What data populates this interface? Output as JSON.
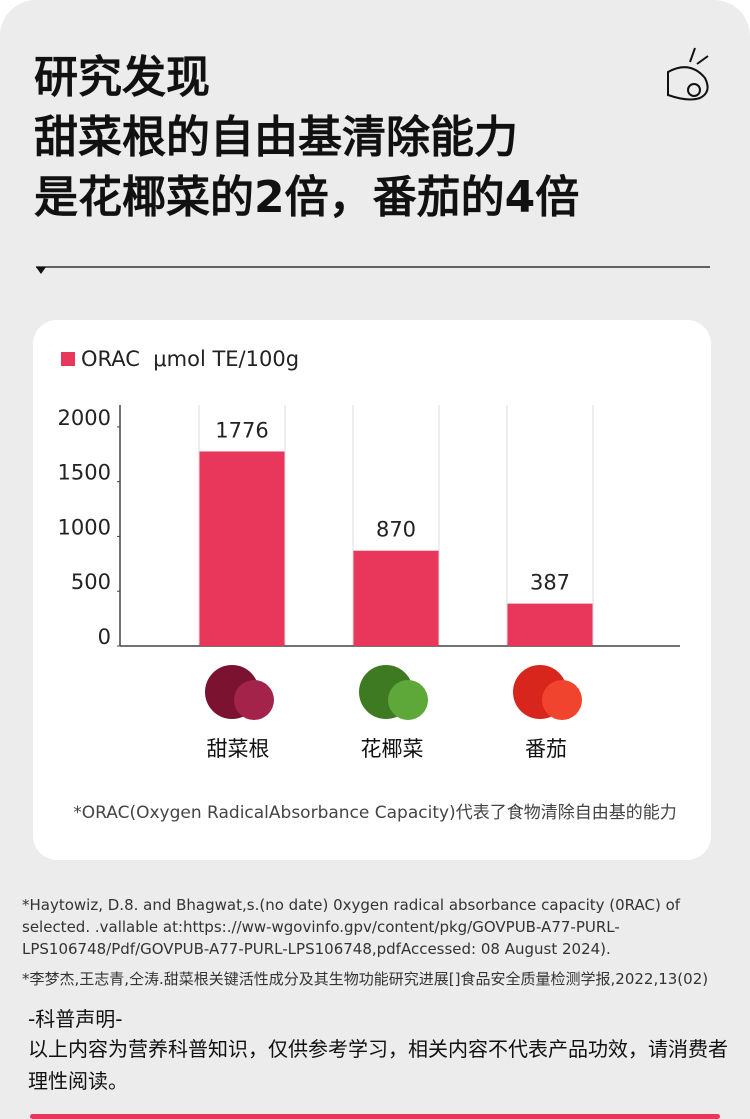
{
  "header": {
    "lines": [
      "研究发现",
      "甜菜根的自由基清除能力",
      "是花椰菜的2倍，番茄的4倍"
    ]
  },
  "chart_data": {
    "type": "bar",
    "categories": [
      "甜菜根",
      "花椰菜",
      "番茄"
    ],
    "series": [
      {
        "name": "ORAC  μmol TE/100g",
        "color": "#e8375a",
        "values": [
          1776,
          870,
          387
        ]
      }
    ],
    "ylim": [
      0,
      2200
    ],
    "yticks": [
      0,
      500,
      1000,
      1500,
      2000
    ],
    "note": "*ORAC(Oxygen RadicalAbsorbance Capacity)代表了食物清除自由基的能力"
  },
  "references": [
    "*Haytowiz, D.8. and Bhagwat,s.(no date) 0xygen radical absorbance capacity (0RAC) of selected. .vallable at:https:.//ww-wgovinfo.gpv/content/pkg/GOVPUB-A77-PURL-LPS106748/Pdf/GOVPUB-A77-PURL-LPS106748,pdfAccessed: 08 August 2024).",
    "*李梦杰,王志青,仝涛.甜菜根关键活性成分及其生物功能研究进展[]食品安全质量检测学报,2022,13(02)"
  ],
  "disclaimer": {
    "title": "-科普声明-",
    "body": "以上内容为营养科普知识，仅供参考学习，相关内容不代表产品功效，请消费者理性阅读。"
  }
}
